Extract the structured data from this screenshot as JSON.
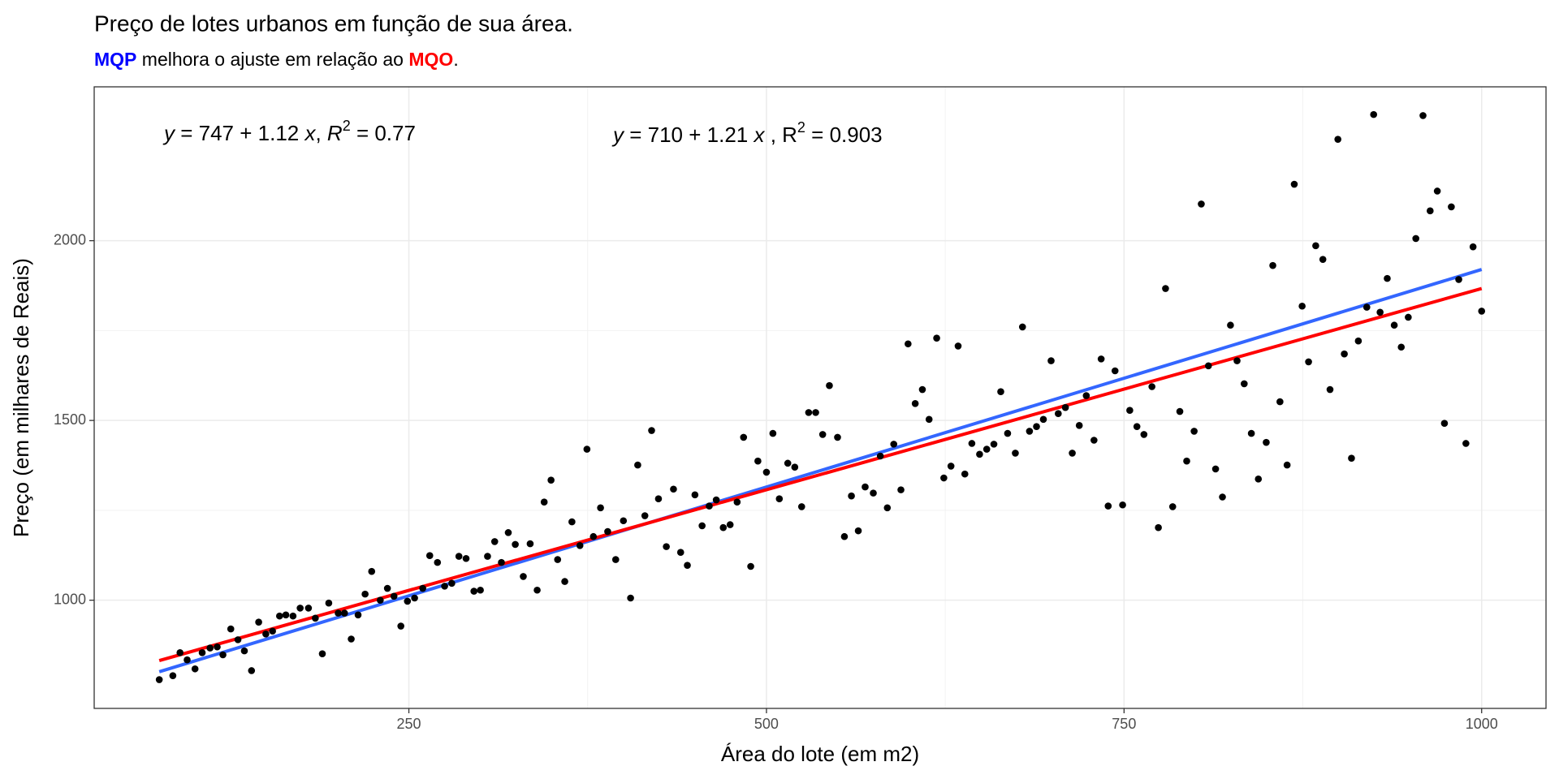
{
  "chart_data": {
    "type": "scatter",
    "title": "Preço de lotes urbanos em função de sua área.",
    "subtitle": [
      {
        "text": "MQP",
        "color": "#0000ff",
        "bold": true
      },
      {
        "text": " melhora o ajuste em relação ao ",
        "color": "#000000",
        "bold": false
      },
      {
        "text": "MQO",
        "color": "#ff0000",
        "bold": true
      },
      {
        "text": ".",
        "color": "#000000",
        "bold": false
      }
    ],
    "x_label": "Área do lote (em m2)",
    "y_label": "Preço (em milhares de Reais)",
    "xlim": [
      30,
      1045
    ],
    "ylim": [
      699,
      2428
    ],
    "xticks": [
      250,
      500,
      750,
      1000
    ],
    "yticks": [
      1000,
      1500,
      2000
    ],
    "grid": true,
    "color": "#000000",
    "x": [
      75.5,
      85,
      90,
      95,
      100.5,
      105.5,
      111,
      116,
      120,
      125.5,
      130.5,
      135,
      140,
      145,
      150,
      154.7,
      159.6,
      164,
      169,
      174,
      179.8,
      184.6,
      189.5,
      194,
      200.6,
      205,
      209.7,
      214.5,
      219.4,
      224,
      230,
      235,
      239.6,
      244.4,
      249,
      254,
      259.7,
      264.6,
      270,
      275,
      280,
      285,
      290,
      295.5,
      300,
      305,
      310,
      314.7,
      319.5,
      324.4,
      330,
      334.8,
      339.7,
      344.6,
      349.4,
      354,
      359,
      364,
      369.6,
      374.5,
      379,
      384,
      389,
      394.6,
      400,
      405,
      410,
      415,
      419.7,
      424.5,
      430,
      435,
      440,
      444.7,
      450,
      455,
      460,
      464.9,
      469.8,
      474.6,
      479.5,
      484,
      489,
      494,
      500,
      504.5,
      509,
      514.9,
      519.8,
      524.6,
      529.5,
      534.4,
      539.3,
      544,
      549.7,
      554.5,
      559.4,
      564.2,
      569,
      574.7,
      579.6,
      584.5,
      589,
      594,
      599,
      604,
      609,
      613.7,
      619,
      624,
      629,
      634,
      638.7,
      643.6,
      649,
      654,
      659,
      663.8,
      668.6,
      674,
      679,
      683.9,
      688.8,
      693.6,
      699,
      704,
      709,
      713.8,
      718.7,
      723.6,
      729,
      734,
      738.9,
      743.7,
      749,
      754,
      759,
      763.9,
      769.5,
      774,
      779,
      784,
      789,
      793.8,
      799,
      804,
      809,
      814,
      818.8,
      824.4,
      829,
      834,
      839,
      843.9,
      849.4,
      854,
      859,
      864,
      869,
      874.5,
      879,
      884,
      889,
      894,
      899.5,
      904,
      909,
      913.8,
      919.7,
      924.5,
      929,
      934,
      938.9,
      943.8,
      948.7,
      954,
      959,
      964,
      969,
      974,
      978.8,
      984,
      989,
      994,
      1000
    ],
    "values": [
      779,
      790,
      854,
      834,
      809,
      854,
      867,
      870,
      848,
      920,
      890,
      859,
      804,
      939,
      906,
      914,
      956,
      959,
      956,
      978,
      978,
      950,
      851,
      992,
      964,
      964,
      892,
      959,
      1017,
      1080,
      1000,
      1033,
      1011,
      928,
      997,
      1006,
      1033,
      1124,
      1105,
      1039,
      1047,
      1122,
      1116,
      1025,
      1028,
      1122,
      1163,
      1105,
      1188,
      1155,
      1066,
      1157,
      1028,
      1273,
      1334,
      1113,
      1052,
      1218,
      1152,
      1420,
      1177,
      1257,
      1191,
      1113,
      1221,
      1006,
      1376,
      1235,
      1472,
      1282,
      1149,
      1309,
      1133,
      1097,
      1293,
      1207,
      1262,
      1279,
      1202,
      1210,
      1273,
      1453,
      1094,
      1387,
      1356,
      1464,
      1282,
      1381,
      1370,
      1260,
      1522,
      1522,
      1461,
      1597,
      1453,
      1177,
      1290,
      1193,
      1315,
      1298,
      1401,
      1257,
      1434,
      1307,
      1713,
      1547,
      1586,
      1503,
      1729,
      1340,
      1373,
      1707,
      1351,
      1436,
      1406,
      1420,
      1434,
      1580,
      1464,
      1409,
      1760,
      1470,
      1483,
      1503,
      1666,
      1519,
      1536,
      1409,
      1486,
      1569,
      1445,
      1671,
      1262,
      1638,
      1265,
      1528,
      1483,
      1461,
      1594,
      1202,
      1867,
      1260,
      1525,
      1387,
      1470,
      2102,
      1652,
      1365,
      1287,
      1765,
      1666,
      1602,
      1464,
      1337,
      1439,
      1931,
      1552,
      1376,
      2157,
      1818,
      1663,
      1986,
      1948,
      1586,
      2282,
      1685,
      1395,
      1721,
      1815,
      2351,
      1801,
      1895,
      1765,
      1704,
      1787,
      2006,
      2348,
      2083,
      2138,
      1492,
      2094,
      1892,
      1436,
      1983,
      1804
    ],
    "lines": [
      {
        "color": "#3366ff",
        "x": [
          75.5,
          1000
        ],
        "values": [
          801,
          1920
        ]
      },
      {
        "color": "#ff0000",
        "x": [
          75.5,
          1000
        ],
        "values": [
          832,
          1867
        ]
      }
    ],
    "annotations": [
      {
        "color": "#ff0000",
        "parts": [
          {
            "text": "y",
            "italic": true
          },
          {
            "text": " = 747 + 1.12 ",
            "italic": false
          },
          {
            "text": "x",
            "italic": true
          },
          {
            "text": ", ",
            "italic": false
          },
          {
            "text": "R",
            "italic": true
          },
          {
            "text": "2",
            "sup": true
          },
          {
            "text": " = 0.77",
            "italic": false
          }
        ]
      },
      {
        "color": "#0000ff",
        "parts": [
          {
            "text": "y",
            "italic": true
          },
          {
            "text": " =  710 +  1.21 ",
            "italic": false
          },
          {
            "text": "x",
            "italic": true
          },
          {
            "text": " ,  R",
            "italic": false
          },
          {
            "text": "2",
            "sup": true
          },
          {
            "text": " =  0.903",
            "italic": false
          }
        ]
      }
    ]
  }
}
